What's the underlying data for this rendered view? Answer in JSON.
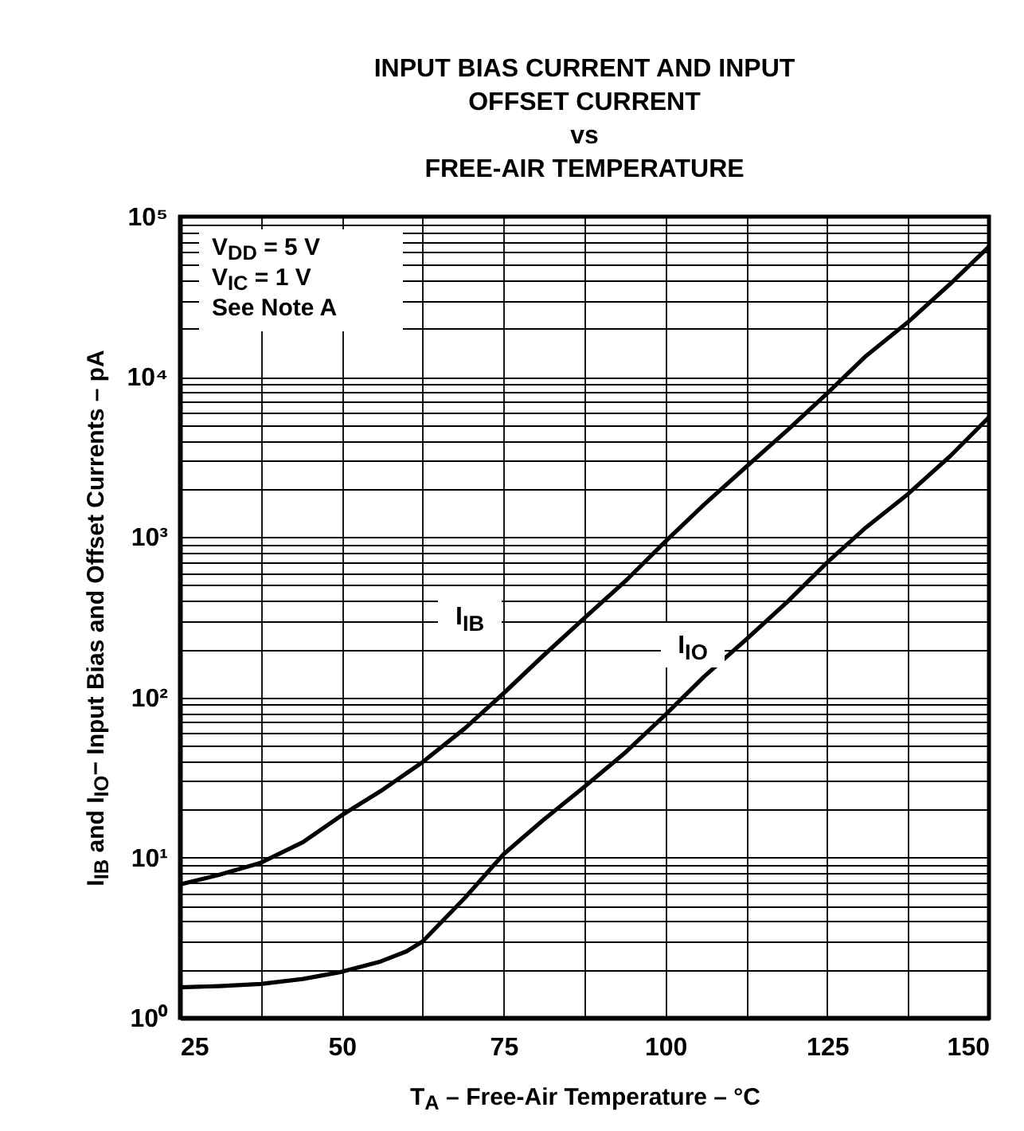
{
  "chart_data": {
    "type": "line",
    "title": "INPUT BIAS CURRENT AND INPUT\nOFFSET CURRENT\nvs\nFREE-AIR TEMPERATURE",
    "xlabel": "T$_{A}$ – Free-Air Temperature – °C",
    "ylabel": "I$_{IB}$ and I$_{IO}$− Input Bias and Offset Currents – pA",
    "x": [
      25,
      31,
      37.5,
      44,
      50,
      56,
      62.5,
      69,
      75,
      81,
      87.5,
      94,
      100,
      106,
      112.5,
      119,
      125,
      131,
      137.5,
      144,
      150
    ],
    "series": [
      {
        "color": "#000000",
        "values": [
          6.8,
          7.8,
          9.3,
          12.5,
          18.4,
          26,
          39.5,
          64,
          106,
          180,
          313,
          540,
          940,
          1600,
          2750,
          4700,
          7900,
          13500,
          22000,
          38000,
          65000
        ]
      },
      {
        "color": "#000000",
        "x": [
          25,
          31,
          37.5,
          44,
          50,
          56,
          60,
          62.5,
          69,
          75,
          81,
          87.5,
          94,
          100,
          106,
          112.5,
          119,
          125,
          131,
          137.5,
          144,
          150
        ],
        "values": [
          1.55,
          1.58,
          1.63,
          1.75,
          1.94,
          2.25,
          2.6,
          3.0,
          5.6,
          10.5,
          17,
          27.7,
          46,
          78,
          135,
          230,
          400,
          695,
          1150,
          1860,
          3200,
          5600
        ]
      }
    ],
    "log": "y",
    "xlim": [
      25,
      150
    ],
    "ylim": [
      1,
      100000
    ],
    "xticks": [
      25,
      {
        "value": 37.5,
        "label": null
      },
      50,
      {
        "value": 62.5,
        "label": null
      },
      75,
      {
        "value": 87.5,
        "label": null
      },
      100,
      {
        "value": 112.5,
        "label": null
      },
      125,
      {
        "value": 137.5,
        "label": null
      },
      150
    ],
    "yticks": [
      {
        "value": 1,
        "label": "10⁰"
      },
      {
        "value": 2,
        "label": null
      },
      {
        "value": 3,
        "label": null
      },
      {
        "value": 4,
        "label": null
      },
      {
        "value": 5,
        "label": null
      },
      {
        "value": 6,
        "label": null
      },
      {
        "value": 7,
        "label": null
      },
      {
        "value": 8,
        "label": null
      },
      {
        "value": 9,
        "label": null
      },
      {
        "value": 10,
        "label": "10¹"
      },
      {
        "value": 20,
        "label": null
      },
      {
        "value": 30,
        "label": null
      },
      {
        "value": 40,
        "label": null
      },
      {
        "value": 50,
        "label": null
      },
      {
        "value": 60,
        "label": null
      },
      {
        "value": 70,
        "label": null
      },
      {
        "value": 80,
        "label": null
      },
      {
        "value": 90,
        "label": null
      },
      {
        "value": 100,
        "label": "10²"
      },
      {
        "value": 200,
        "label": null
      },
      {
        "value": 300,
        "label": null
      },
      {
        "value": 400,
        "label": null
      },
      {
        "value": 500,
        "label": null
      },
      {
        "value": 600,
        "label": null
      },
      {
        "value": 700,
        "label": null
      },
      {
        "value": 800,
        "label": null
      },
      {
        "value": 900,
        "label": null
      },
      {
        "value": 1000,
        "label": "10³"
      },
      {
        "value": 2000,
        "label": null
      },
      {
        "value": 3000,
        "label": null
      },
      {
        "value": 4000,
        "label": null
      },
      {
        "value": 5000,
        "label": null
      },
      {
        "value": 6000,
        "label": null
      },
      {
        "value": 7000,
        "label": null
      },
      {
        "value": 8000,
        "label": null
      },
      {
        "value": 9000,
        "label": null
      },
      {
        "value": 10000,
        "label": "10⁴"
      },
      {
        "value": 20000,
        "label": null
      },
      {
        "value": 30000,
        "label": null
      },
      {
        "value": 40000,
        "label": null
      },
      {
        "value": 50000,
        "label": null
      },
      {
        "value": 60000,
        "label": null
      },
      {
        "value": 70000,
        "label": null
      },
      {
        "value": 80000,
        "label": null
      },
      {
        "value": 90000,
        "label": null
      },
      {
        "value": 100000,
        "label": "10⁵"
      }
    ],
    "grid": true,
    "legend": false,
    "line_style": "solid",
    "marker": "none",
    "annotations": [
      "V$_{DD}$ = 5 V",
      "V$_{IC}$ = 1 V",
      "See Note A",
      "I$_{IB}$",
      "I$_{IO}$"
    ]
  }
}
